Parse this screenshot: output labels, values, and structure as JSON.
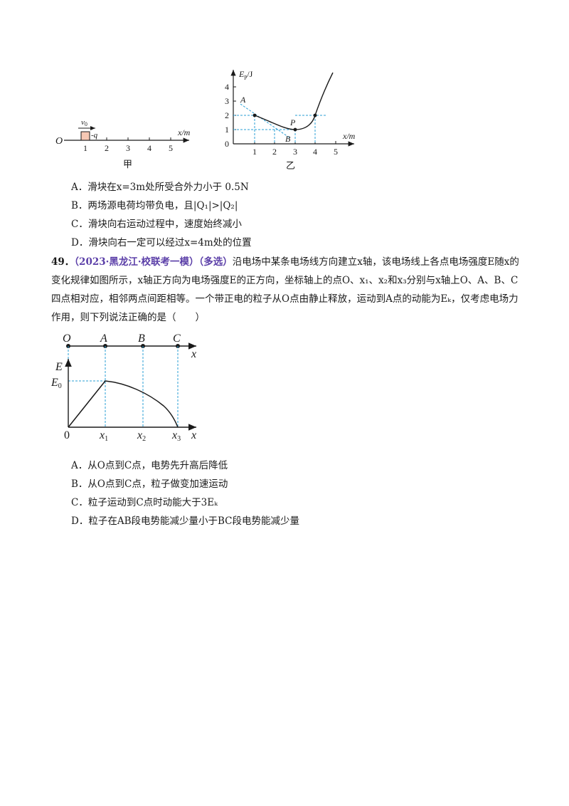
{
  "fig_jia": {
    "origin_label": "O",
    "v_label": "v",
    "v_sub": "0",
    "charge_label": "-q",
    "axis_label": "x/m",
    "ticks": [
      "1",
      "2",
      "3",
      "4",
      "5"
    ],
    "caption": "甲"
  },
  "fig_yi": {
    "ylabel_main": "E",
    "ylabel_sub": "p",
    "ylabel_unit": "/J",
    "xlabel": "x/m",
    "origin": "0",
    "xticks": [
      "1",
      "2",
      "3",
      "4",
      "5"
    ],
    "yticks": [
      "1",
      "2",
      "3",
      "4"
    ],
    "label_A": "A",
    "label_B": "B",
    "label_P": "P",
    "caption": "乙"
  },
  "q48_options": [
    {
      "letter": "A．",
      "text": "滑块在x=3m处所受合外力小于  0.5N"
    },
    {
      "letter": "B．",
      "text": "两场源电荷均带负电，且|Q₁|>|Q₂|"
    },
    {
      "letter": "C．",
      "text": "滑块向右运动过程中，速度始终减小"
    },
    {
      "letter": "D．",
      "text": "滑块向右一定可以经过x=4m处的位置"
    }
  ],
  "q49": {
    "number": "49．",
    "source": "（2023·黑龙江·校联考一模）（多选）",
    "stem": "沿电场中某条电场线方向建立x轴，该电场线上各点电场强度E随x的变化规律如图所示，x轴正方向为电场强度E的正方向，坐标轴上的点O、x₁、x₂和x₃分别与x轴上O、A、B、C四点相对应，相邻两点间距相等。一个带正电的粒子从O点由静止释放，运动到A点的动能为Eₖ，仅考虑电场力作用，则下列说法正确的是（　　）"
  },
  "fig_ex": {
    "top_points": [
      "O",
      "A",
      "B",
      "C"
    ],
    "top_axis": "x",
    "ylabel": "E",
    "e0_main": "E",
    "e0_sub": "0",
    "origin": "0",
    "x_main": "x",
    "x_subs": [
      "1",
      "2",
      "3"
    ],
    "xlabel": "x"
  },
  "q49_options": [
    {
      "letter": "A．",
      "text": "从O点到C点，电势先升高后降低"
    },
    {
      "letter": "B．",
      "text": "从O点到C点，粒子做变加速运动"
    },
    {
      "letter": "C．",
      "text": "粒子运动到C点时动能大于3Eₖ"
    },
    {
      "letter": "D．",
      "text": "粒子在AB段电势能减少量小于BC段电势能减少量"
    }
  ]
}
